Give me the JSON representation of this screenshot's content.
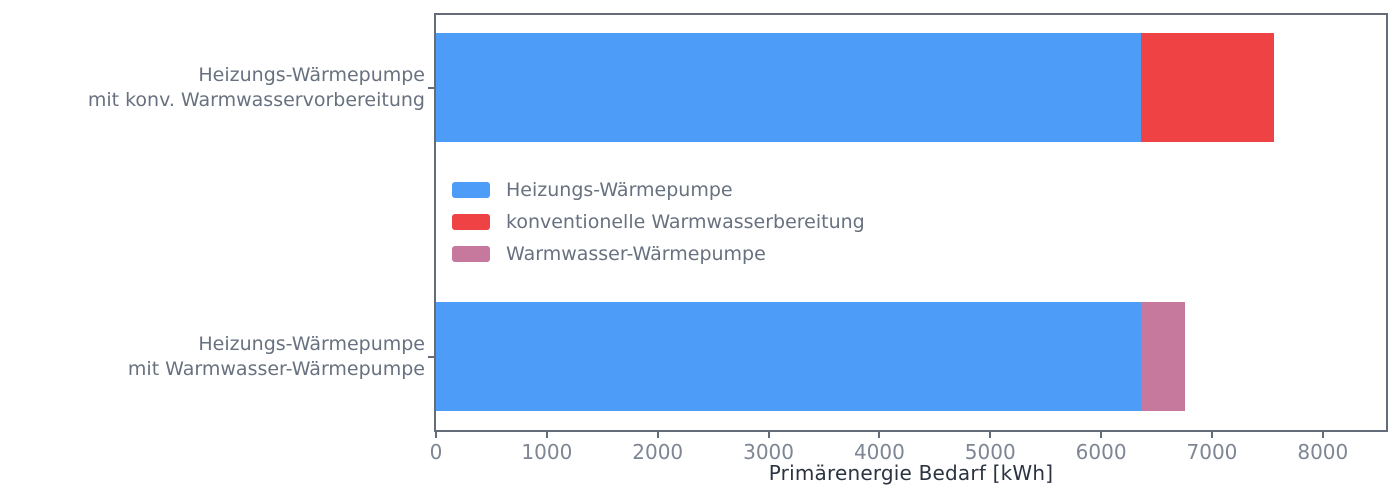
{
  "chart_data": {
    "type": "bar",
    "orientation": "horizontal",
    "stacked": true,
    "title": "",
    "xlabel": "Primärenergie Bedarf [kWh]",
    "ylabel": "",
    "xlim": [
      0,
      8570
    ],
    "xticks": [
      0,
      1000,
      2000,
      3000,
      4000,
      5000,
      6000,
      7000,
      8000
    ],
    "grid": false,
    "categories": [
      "Heizungs-Wärmepumpe mit konv. Warmwasservorbereitung",
      "Heizungs-Wärmepumpe mit Warmwasser-Wärmepumpe"
    ],
    "category_label_lines": [
      [
        "Heizungs-Wärmepumpe",
        "mit konv. Warmwasservorbereitung"
      ],
      [
        "Heizungs-Wärmepumpe",
        "mit Warmwasser-Wärmepumpe"
      ]
    ],
    "series": [
      {
        "name": "Heizungs-Wärmepumpe",
        "color": "#4D9CF7",
        "values": [
          6360,
          6360
        ]
      },
      {
        "name": "konventionelle Warmwasserbereitung",
        "color": "#EE4245",
        "values": [
          1200,
          0
        ]
      },
      {
        "name": "Warmwasser-Wärmepumpe",
        "color": "#C6789D",
        "values": [
          0,
          400
        ]
      }
    ],
    "stacked_totals": [
      7560,
      6760
    ],
    "legend": {
      "position": "inside-upper-left",
      "frame": false
    }
  },
  "colors": {
    "background": "#FFFFFF",
    "spine": "#646C79",
    "tick_label": "#7E8694",
    "category_label": "#68717F",
    "legend_text": "#68717F",
    "xlabel_text": "#2B3440"
  }
}
